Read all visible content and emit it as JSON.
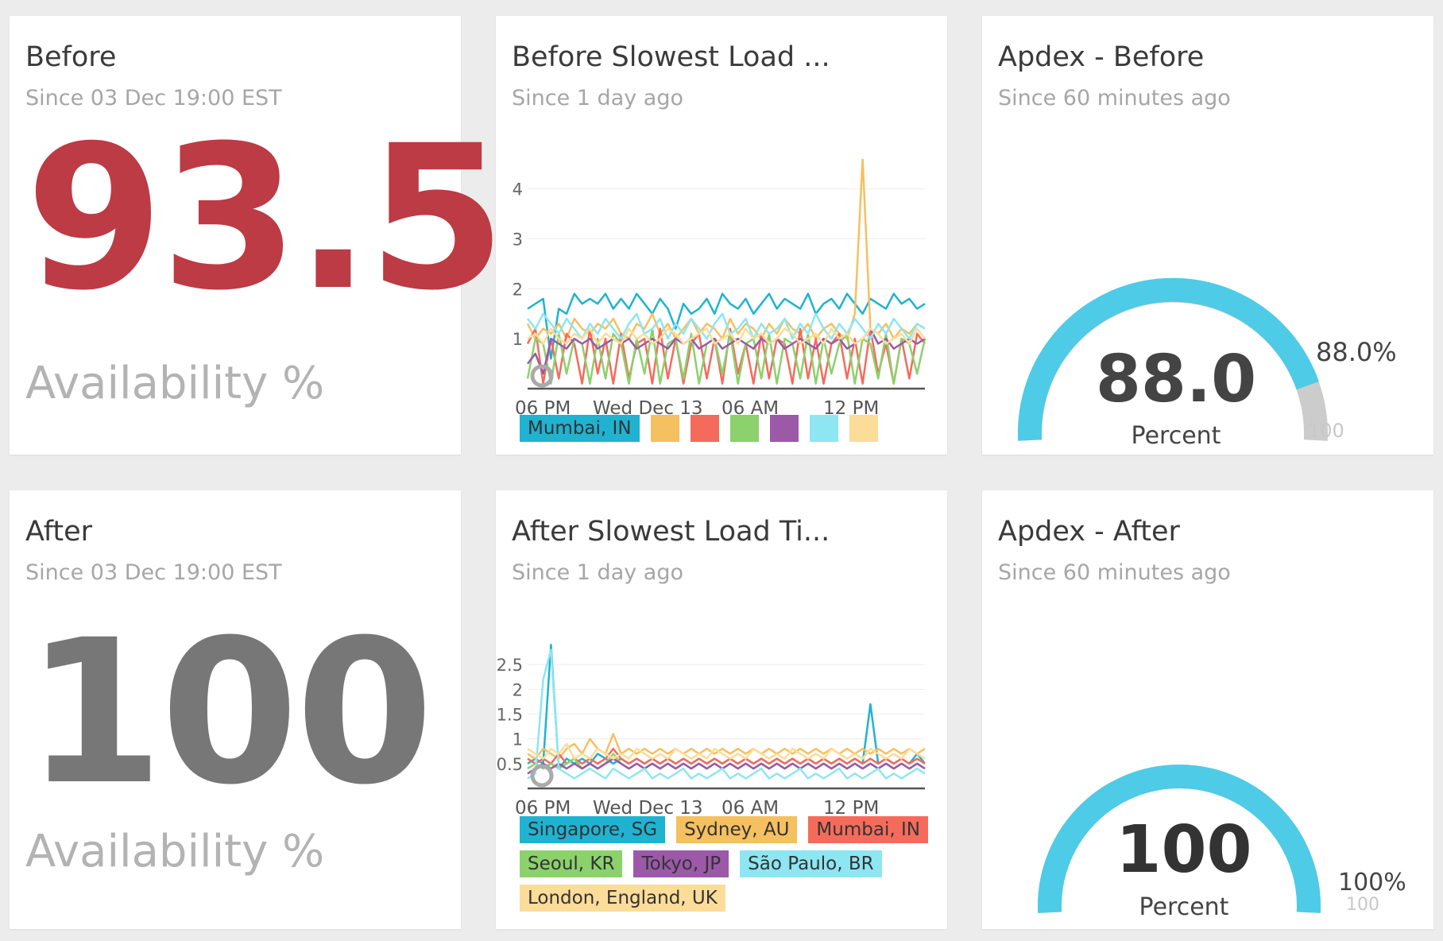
{
  "cards": {
    "before": {
      "title": "Before",
      "subtitle": "Since 03 Dec 19:00 EST",
      "value": "93.5",
      "value_color": "#bc3b44",
      "unit": "Availability %"
    },
    "after": {
      "title": "After",
      "subtitle": "Since 03 Dec 19:00 EST",
      "value": "100",
      "value_color": "#777777",
      "unit": "Availability %"
    },
    "before_load": {
      "title": "Before Slowest Load ...",
      "subtitle": "Since 1 day ago"
    },
    "after_load": {
      "title": "After Slowest Load Ti...",
      "subtitle": "Since 1 day ago"
    },
    "apdex_before": {
      "title": "Apdex - Before",
      "subtitle": "Since 60 minutes ago",
      "value": "88.0",
      "label": "Percent",
      "pct_label": "88.0%",
      "max_label": "100",
      "fraction": 0.88
    },
    "apdex_after": {
      "title": "Apdex - After",
      "subtitle": "Since 60 minutes ago",
      "value": "100",
      "label": "Percent",
      "pct_label": "100%",
      "max_label": "100",
      "fraction": 1.0
    }
  },
  "colors": {
    "gauge_fill": "#4ecbe6",
    "gauge_track": "#cccccc"
  },
  "chart_data": [
    {
      "type": "line",
      "x_ticks": [
        "06 PM",
        "Wed Dec 13",
        "06 AM",
        "12 PM"
      ],
      "y_ticks": [
        "1",
        "2",
        "3",
        "4"
      ],
      "ylim": [
        0,
        4.6
      ],
      "legend": [
        {
          "name": "Mumbai, IN",
          "color": "#1fb3d1"
        },
        {
          "name": "",
          "color": "#f5c060"
        },
        {
          "name": "",
          "color": "#f56b5b"
        },
        {
          "name": "",
          "color": "#8bd16c"
        },
        {
          "name": "",
          "color": "#9b59a8"
        },
        {
          "name": "",
          "color": "#8de6f2"
        },
        {
          "name": "",
          "color": "#fbdc99"
        }
      ],
      "series": [
        {
          "color": "#1fb3d1",
          "values": [
            1.6,
            1.7,
            1.8,
            0.6,
            1.6,
            1.5,
            1.9,
            1.7,
            1.8,
            1.7,
            1.9,
            1.6,
            1.8,
            1.6,
            1.9,
            1.7,
            1.5,
            1.8,
            1.6,
            1.2,
            1.7,
            1.5,
            1.6,
            1.8,
            1.5,
            1.9,
            1.7,
            1.6,
            1.8,
            1.5,
            1.7,
            1.9,
            1.6,
            1.8,
            1.7,
            1.6,
            1.9,
            1.5,
            1.7,
            1.8,
            1.6,
            1.9,
            1.7,
            1.5,
            1.8,
            1.7,
            1.6,
            1.9,
            1.7,
            1.8,
            1.6,
            1.7
          ]
        },
        {
          "color": "#f5c060",
          "values": [
            1.3,
            1.0,
            1.2,
            1.1,
            1.3,
            1.0,
            1.4,
            1.2,
            1.1,
            1.3,
            1.2,
            1.4,
            1.1,
            1.0,
            1.3,
            1.2,
            1.5,
            1.1,
            1.3,
            1.0,
            1.2,
            1.4,
            1.1,
            1.3,
            1.2,
            1.0,
            1.4,
            1.1,
            1.3,
            1.2,
            1.0,
            1.3,
            1.1,
            1.4,
            1.2,
            1.1,
            1.3,
            1.0,
            1.2,
            1.3,
            1.1,
            1.0,
            1.5,
            4.6,
            1.2,
            1.1,
            1.3,
            1.0,
            1.2,
            1.1,
            1.3,
            1.2
          ]
        },
        {
          "color": "#f56b5b",
          "values": [
            0.9,
            1.2,
            0.1,
            1.0,
            0.2,
            1.1,
            0.9,
            0.1,
            1.2,
            0.3,
            1.0,
            0.1,
            1.1,
            0.2,
            0.9,
            1.0,
            0.1,
            1.2,
            0.2,
            1.0,
            0.1,
            0.9,
            1.1,
            0.2,
            1.0,
            0.1,
            1.2,
            0.3,
            0.9,
            0.1,
            1.1,
            0.2,
            1.0,
            0.9,
            0.1,
            1.2,
            0.2,
            1.0,
            0.1,
            0.9,
            1.1,
            0.2,
            1.0,
            0.1,
            1.2,
            0.3,
            0.9,
            0.1,
            1.0,
            0.2,
            1.1,
            0.9
          ]
        },
        {
          "color": "#8bd16c",
          "values": [
            0.2,
            1.0,
            0.9,
            0.1,
            1.1,
            0.3,
            1.0,
            0.9,
            0.1,
            1.0,
            0.2,
            1.1,
            0.9,
            0.1,
            1.0,
            0.3,
            1.2,
            0.1,
            0.9,
            1.0,
            0.2,
            1.1,
            0.1,
            0.9,
            1.0,
            0.3,
            1.1,
            0.1,
            0.9,
            1.0,
            0.2,
            1.1,
            0.1,
            1.0,
            0.9,
            0.2,
            1.1,
            0.1,
            1.0,
            0.3,
            0.9,
            1.1,
            0.1,
            1.0,
            0.9,
            0.2,
            1.1,
            0.1,
            1.0,
            0.9,
            0.3,
            1.0
          ]
        },
        {
          "color": "#9b59a8",
          "values": [
            0.5,
            0.7,
            0.3,
            1.0,
            0.9,
            0.8,
            1.0,
            0.9,
            1.0,
            0.8,
            0.9,
            1.0,
            0.9,
            1.0,
            0.8,
            0.9,
            1.0,
            0.9,
            0.8,
            1.0,
            0.9,
            1.0,
            0.8,
            0.9,
            1.0,
            0.8,
            0.9,
            1.0,
            0.9,
            0.8,
            1.0,
            0.9,
            1.0,
            0.8,
            0.9,
            1.0,
            0.9,
            0.8,
            1.0,
            0.9,
            1.0,
            0.8,
            0.9,
            1.0,
            1.2,
            0.9,
            1.0,
            0.8,
            0.9,
            1.0,
            0.9,
            1.0
          ]
        },
        {
          "color": "#8de6f2",
          "values": [
            1.4,
            1.2,
            1.5,
            1.3,
            1.1,
            1.4,
            1.2,
            1.0,
            1.3,
            1.1,
            1.4,
            1.2,
            1.0,
            1.3,
            1.5,
            1.1,
            1.2,
            1.4,
            1.0,
            1.3,
            1.1,
            1.4,
            1.2,
            1.0,
            1.3,
            1.5,
            1.1,
            1.2,
            1.4,
            1.0,
            1.3,
            1.1,
            1.2,
            1.4,
            1.0,
            1.3,
            1.1,
            1.5,
            1.2,
            1.0,
            1.3,
            1.1,
            1.4,
            1.2,
            1.0,
            1.3,
            1.1,
            1.4,
            1.2,
            1.0,
            1.3,
            1.2
          ]
        },
        {
          "color": "#fbdc99",
          "values": [
            1.0,
            1.1,
            0.9,
            1.2,
            1.0,
            0.9,
            1.1,
            1.0,
            1.2,
            0.9,
            1.1,
            1.0,
            0.9,
            1.2,
            1.0,
            1.1,
            0.9,
            1.0,
            1.2,
            1.1,
            0.9,
            1.0,
            1.1,
            1.2,
            0.9,
            1.0,
            1.1,
            0.9,
            1.2,
            1.0,
            1.1,
            0.9,
            1.0,
            1.2,
            1.1,
            0.9,
            1.0,
            1.1,
            0.9,
            1.2,
            1.0,
            1.1,
            0.9,
            1.0,
            1.2,
            1.1,
            0.9,
            1.0,
            1.1,
            0.9,
            1.2,
            1.0
          ]
        }
      ]
    },
    {
      "type": "line",
      "x_ticks": [
        "06 PM",
        "Wed Dec 13",
        "06 AM",
        "12 PM"
      ],
      "y_ticks": [
        "0.5",
        "1",
        "1.5",
        "2",
        "2.5"
      ],
      "ylim": [
        0,
        3.0
      ],
      "legend": [
        {
          "name": "Singapore, SG",
          "color": "#1fb3d1"
        },
        {
          "name": "Sydney, AU",
          "color": "#f5c060"
        },
        {
          "name": "Mumbai, IN",
          "color": "#f56b5b"
        },
        {
          "name": "Seoul, KR",
          "color": "#8bd16c"
        },
        {
          "name": "Tokyo, JP",
          "color": "#9b59a8"
        },
        {
          "name": "São Paulo, BR",
          "color": "#8de6f2"
        },
        {
          "name": "London, England, UK",
          "color": "#fbdc99"
        }
      ],
      "series": [
        {
          "color": "#1fb3d1",
          "values": [
            0.5,
            0.6,
            0.5,
            2.9,
            0.4,
            0.6,
            0.5,
            0.6,
            0.5,
            0.7,
            0.6,
            0.5,
            0.6,
            0.5,
            0.6,
            0.5,
            0.6,
            0.5,
            0.6,
            0.5,
            0.6,
            0.5,
            0.6,
            0.5,
            0.6,
            0.5,
            0.6,
            0.5,
            0.6,
            0.5,
            0.6,
            0.5,
            0.6,
            0.5,
            0.6,
            0.5,
            0.6,
            0.5,
            0.6,
            0.5,
            0.6,
            0.5,
            0.6,
            0.5,
            1.7,
            0.5,
            0.6,
            0.5,
            0.6,
            0.5,
            0.7,
            0.5
          ]
        },
        {
          "color": "#f5c060",
          "values": [
            0.7,
            0.6,
            0.8,
            0.7,
            0.6,
            0.8,
            0.9,
            0.7,
            1.0,
            0.8,
            0.7,
            1.1,
            0.7,
            0.8,
            0.7,
            0.8,
            0.7,
            0.8,
            0.7,
            0.8,
            0.7,
            0.8,
            0.7,
            0.8,
            0.7,
            0.8,
            0.7,
            0.8,
            0.7,
            0.8,
            0.7,
            0.8,
            0.7,
            0.8,
            0.7,
            0.8,
            0.7,
            0.8,
            0.7,
            0.8,
            0.7,
            0.8,
            0.7,
            0.8,
            0.7,
            0.8,
            0.7,
            0.8,
            0.7,
            0.8,
            0.7,
            0.8
          ]
        },
        {
          "color": "#f56b5b",
          "values": [
            0.6,
            0.5,
            0.6,
            0.5,
            0.7,
            0.5,
            0.6,
            0.5,
            0.6,
            0.5,
            0.6,
            0.8,
            0.6,
            0.5,
            0.6,
            0.5,
            0.6,
            0.5,
            0.6,
            0.5,
            0.6,
            0.5,
            0.6,
            0.5,
            0.6,
            0.5,
            0.6,
            0.5,
            0.6,
            0.5,
            0.6,
            0.5,
            0.6,
            0.5,
            0.6,
            0.5,
            0.6,
            0.5,
            0.6,
            0.5,
            0.6,
            0.5,
            0.6,
            0.5,
            0.6,
            0.5,
            0.6,
            0.5,
            0.6,
            0.5,
            0.6,
            0.5
          ]
        },
        {
          "color": "#8bd16c",
          "values": [
            0.4,
            0.5,
            0.4,
            0.5,
            0.4,
            0.5,
            0.6,
            0.4,
            0.5,
            0.4,
            0.5,
            0.7,
            0.5,
            0.4,
            0.5,
            0.4,
            0.5,
            0.4,
            0.5,
            0.4,
            0.5,
            0.4,
            0.5,
            0.4,
            0.5,
            0.4,
            0.5,
            0.4,
            0.5,
            0.4,
            0.5,
            0.4,
            0.5,
            0.4,
            0.5,
            0.4,
            0.5,
            0.4,
            0.5,
            0.4,
            0.5,
            0.4,
            0.5,
            0.4,
            0.5,
            0.4,
            0.5,
            0.4,
            0.5,
            0.4,
            0.5,
            0.4
          ]
        },
        {
          "color": "#9b59a8",
          "values": [
            0.3,
            0.4,
            0.5,
            0.4,
            0.5,
            0.4,
            0.5,
            0.4,
            0.5,
            0.4,
            0.5,
            0.6,
            0.5,
            0.4,
            0.5,
            0.4,
            0.5,
            0.4,
            0.5,
            0.4,
            0.5,
            0.4,
            0.5,
            0.4,
            0.5,
            0.4,
            0.5,
            0.4,
            0.5,
            0.4,
            0.5,
            0.4,
            0.5,
            0.4,
            0.5,
            0.4,
            0.5,
            0.4,
            0.5,
            0.4,
            0.5,
            0.4,
            0.5,
            0.4,
            0.5,
            0.4,
            0.5,
            0.4,
            0.5,
            0.4,
            0.5,
            0.4
          ]
        },
        {
          "color": "#8de6f2",
          "values": [
            0.2,
            0.3,
            2.2,
            2.8,
            0.4,
            0.3,
            0.2,
            0.3,
            0.4,
            0.3,
            0.2,
            0.4,
            0.3,
            0.2,
            0.3,
            0.4,
            0.2,
            0.3,
            0.2,
            0.3,
            0.4,
            0.2,
            0.3,
            0.2,
            0.3,
            0.4,
            0.2,
            0.3,
            0.2,
            0.3,
            0.4,
            0.2,
            0.3,
            0.2,
            0.3,
            0.4,
            0.2,
            0.3,
            0.2,
            0.3,
            0.4,
            0.2,
            0.3,
            0.2,
            0.3,
            0.4,
            0.2,
            0.3,
            0.2,
            0.3,
            0.4,
            0.3
          ]
        },
        {
          "color": "#fbdc99",
          "values": [
            0.8,
            0.7,
            0.6,
            0.8,
            0.7,
            0.9,
            0.6,
            0.7,
            0.6,
            0.8,
            0.7,
            0.6,
            0.7,
            0.6,
            0.8,
            0.7,
            0.6,
            0.7,
            0.6,
            0.8,
            0.7,
            0.6,
            0.7,
            0.6,
            0.8,
            0.7,
            0.6,
            0.7,
            0.6,
            0.8,
            0.7,
            0.6,
            0.7,
            0.6,
            0.8,
            0.7,
            0.6,
            0.7,
            0.6,
            0.8,
            0.7,
            0.6,
            0.7,
            0.6,
            0.8,
            0.7,
            0.6,
            0.7,
            0.6,
            0.8,
            0.7,
            0.6
          ]
        }
      ]
    }
  ]
}
